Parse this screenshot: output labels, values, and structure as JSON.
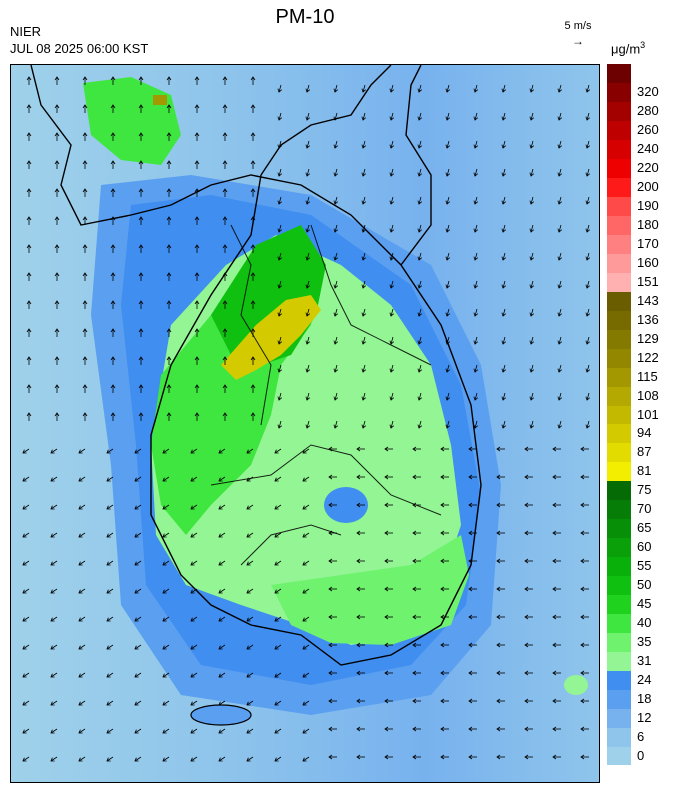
{
  "header": {
    "title": "PM-10",
    "org": "NIER",
    "datetime": "JUL 08 2025 06:00 KST",
    "vector_scale_label": "5 m/s",
    "vector_scale_arrow": "→",
    "unit_base": "μg/m",
    "unit_exp": "3"
  },
  "legend": {
    "levels": [
      {
        "label": "0",
        "color": "#9fd1ea"
      },
      {
        "label": "6",
        "color": "#8fc5eb"
      },
      {
        "label": "12",
        "color": "#78b2ee"
      },
      {
        "label": "18",
        "color": "#5b9ff0"
      },
      {
        "label": "24",
        "color": "#3f8ef0"
      },
      {
        "label": "31",
        "color": "#93f593"
      },
      {
        "label": "35",
        "color": "#6ff36f"
      },
      {
        "label": "40",
        "color": "#3fe63f"
      },
      {
        "label": "45",
        "color": "#1ed21e"
      },
      {
        "label": "50",
        "color": "#10c010"
      },
      {
        "label": "55",
        "color": "#0ab00a"
      },
      {
        "label": "60",
        "color": "#09a009"
      },
      {
        "label": "65",
        "color": "#088f08"
      },
      {
        "label": "70",
        "color": "#067d06"
      },
      {
        "label": "75",
        "color": "#056c05"
      },
      {
        "label": "81",
        "color": "#f3ee00"
      },
      {
        "label": "87",
        "color": "#e3dc00"
      },
      {
        "label": "94",
        "color": "#d3cb00"
      },
      {
        "label": "101",
        "color": "#c3ba00"
      },
      {
        "label": "108",
        "color": "#b3a900"
      },
      {
        "label": "115",
        "color": "#a39800"
      },
      {
        "label": "122",
        "color": "#938700"
      },
      {
        "label": "129",
        "color": "#857a00"
      },
      {
        "label": "136",
        "color": "#776b00"
      },
      {
        "label": "143",
        "color": "#6a5d00"
      },
      {
        "label": "151",
        "color": "#ffb0b0"
      },
      {
        "label": "160",
        "color": "#ff9a9a"
      },
      {
        "label": "170",
        "color": "#ff8080"
      },
      {
        "label": "180",
        "color": "#ff6666"
      },
      {
        "label": "190",
        "color": "#ff4a4a"
      },
      {
        "label": "200",
        "color": "#ff1a1a"
      },
      {
        "label": "220",
        "color": "#ee0000"
      },
      {
        "label": "240",
        "color": "#d60000"
      },
      {
        "label": "260",
        "color": "#be0000"
      },
      {
        "label": "280",
        "color": "#a30000"
      },
      {
        "label": "320",
        "color": "#880000"
      },
      {
        "label": "",
        "color": "#6d0000"
      }
    ]
  }
}
